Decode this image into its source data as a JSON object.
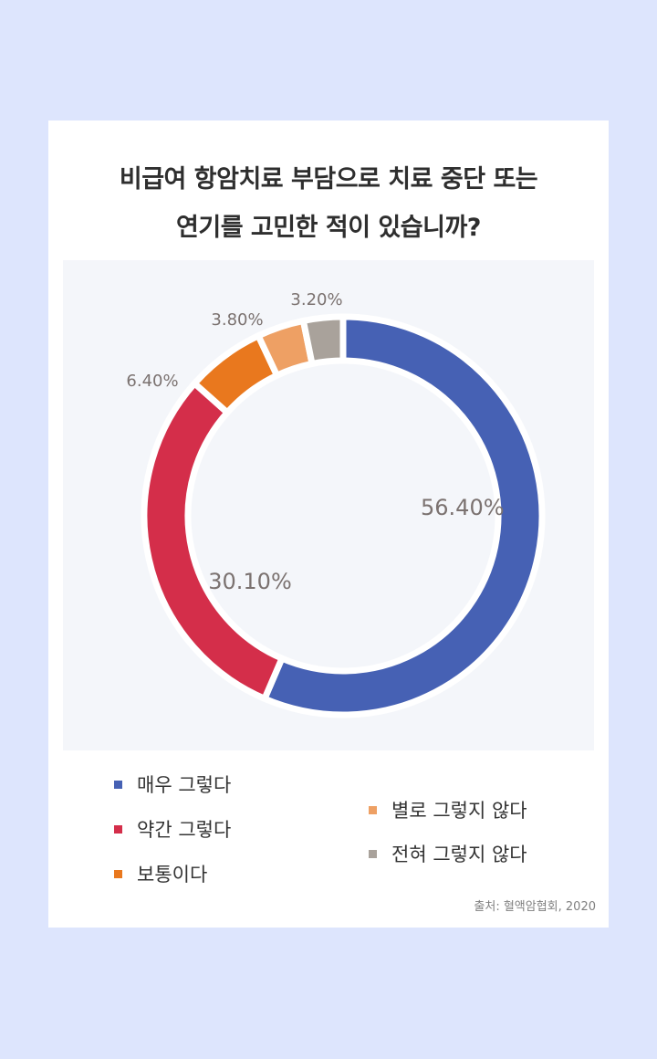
{
  "chart_data": {
    "type": "pie",
    "donut": true,
    "title_lines": [
      "비급여 항암치료 부담으로 치료 중단  또는",
      "연기를 고민한 적이 있습니까?"
    ],
    "categories": [
      "매우 그렇다",
      "약간 그렇다",
      "보통이다",
      "별로 그렇지 않다",
      "전혀 그렇지 않다"
    ],
    "values": [
      56.4,
      30.1,
      6.4,
      3.8,
      3.2
    ],
    "data_labels": [
      "56.40%",
      "30.10%",
      "6.40%",
      "3.80%",
      "3.20%"
    ],
    "colors": [
      "#4661b4",
      "#d42e4a",
      "#e9781e",
      "#eea064",
      "#a9a29b"
    ],
    "legend_placement": "bottom",
    "source": "출처: 혈액암협회, 2020"
  }
}
